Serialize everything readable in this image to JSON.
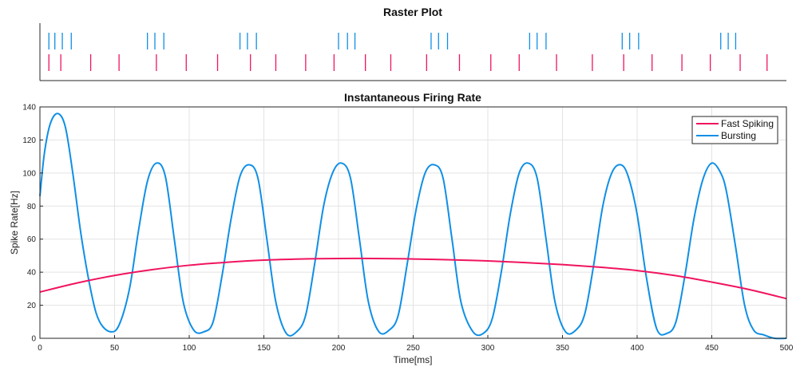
{
  "colors": {
    "fast": "#f0145e",
    "burst": "#0f8fe6",
    "grid": "#e3e3e3",
    "axis": "#262626"
  },
  "chart_data": [
    {
      "type": "raster",
      "title": "Raster Plot",
      "xlim": [
        0,
        500
      ],
      "series": [
        {
          "name": "Bursting",
          "row": "top",
          "spike_times": [
            6,
            10,
            15,
            21,
            72,
            77,
            83,
            134,
            139,
            145,
            200,
            206,
            211,
            262,
            267,
            273,
            328,
            333,
            339,
            390,
            395,
            401,
            456,
            461,
            466
          ]
        },
        {
          "name": "Fast Spiking",
          "row": "bottom",
          "spike_times": [
            6,
            14,
            34,
            53,
            78,
            98,
            119,
            141,
            158,
            178,
            197,
            218,
            235,
            259,
            281,
            302,
            321,
            346,
            370,
            391,
            410,
            430,
            449,
            469,
            487
          ]
        }
      ]
    },
    {
      "type": "line",
      "title": "Instantaneous Firing Rate",
      "xlabel": "Time[ms]",
      "ylabel": "Spike Rate[Hz]",
      "xlim": [
        0,
        500
      ],
      "ylim": [
        0,
        140
      ],
      "xticks": [
        0,
        50,
        100,
        150,
        200,
        250,
        300,
        350,
        400,
        450,
        500
      ],
      "yticks": [
        0,
        20,
        40,
        60,
        80,
        100,
        120,
        140
      ],
      "grid": true,
      "legend_position": "top-right",
      "series": [
        {
          "name": "Fast Spiking",
          "x": [
            0,
            25,
            50,
            75,
            100,
            125,
            150,
            175,
            200,
            225,
            250,
            275,
            300,
            325,
            350,
            375,
            400,
            425,
            450,
            475,
            500
          ],
          "y": [
            28,
            33.5,
            38,
            41.5,
            44.2,
            46,
            47.3,
            48,
            48.3,
            48.3,
            48,
            47.5,
            46.8,
            45.8,
            44.6,
            43,
            41,
            38,
            34,
            29.5,
            24
          ]
        },
        {
          "name": "Bursting",
          "x": [
            0,
            3,
            7,
            12,
            17,
            22,
            28,
            35,
            40,
            47,
            53,
            60,
            66,
            72,
            78,
            84,
            90,
            96,
            103,
            110,
            116,
            122,
            128,
            134,
            140,
            146,
            152,
            158,
            165,
            172,
            178,
            184,
            190,
            196,
            202,
            208,
            214,
            220,
            227,
            234,
            240,
            246,
            252,
            258,
            264,
            270,
            276,
            282,
            290,
            297,
            303,
            309,
            315,
            321,
            327,
            333,
            339,
            345,
            352,
            359,
            365,
            371,
            377,
            383,
            389,
            394,
            400,
            406,
            413,
            420,
            426,
            432,
            438,
            444,
            450,
            456,
            460,
            466,
            472,
            478,
            485,
            492,
            500
          ],
          "y": [
            86,
            112,
            130,
            136,
            128,
            100,
            60,
            25,
            10,
            4,
            8,
            30,
            65,
            95,
            106,
            98,
            60,
            22,
            5,
            4,
            10,
            38,
            72,
            98,
            105,
            97,
            60,
            22,
            3,
            4,
            14,
            45,
            80,
            100,
            106,
            97,
            60,
            22,
            4,
            5,
            14,
            45,
            78,
            100,
            105,
            97,
            60,
            22,
            4,
            3,
            12,
            40,
            75,
            100,
            106,
            97,
            60,
            22,
            4,
            5,
            15,
            45,
            80,
            100,
            105,
            98,
            75,
            38,
            6,
            3,
            10,
            38,
            72,
            96,
            106,
            100,
            88,
            55,
            20,
            5,
            2,
            0,
            0
          ]
        }
      ]
    }
  ]
}
